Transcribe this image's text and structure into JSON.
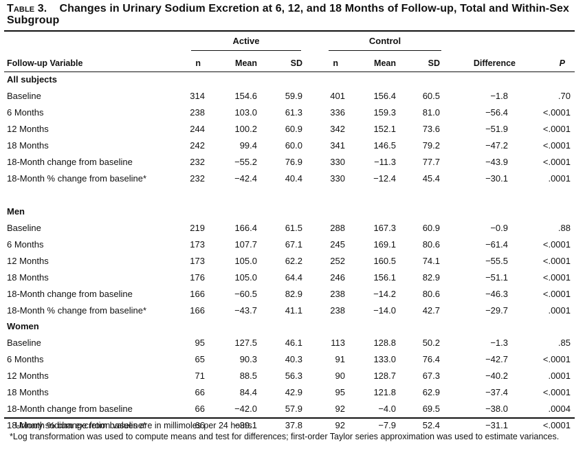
{
  "table": {
    "title_prefix": "Table 3.",
    "title_text": "Changes in Urinary Sodium Excretion at 6, 12, and 18 Months of Follow-up, Total and Within-Sex Subgroup",
    "group_headers": {
      "active": "Active",
      "control": "Control"
    },
    "columns": {
      "variable": "Follow-up Variable",
      "active_n": "n",
      "active_mean": "Mean",
      "active_sd": "SD",
      "control_n": "n",
      "control_mean": "Mean",
      "control_sd": "SD",
      "difference": "Difference",
      "p": "P"
    },
    "sections": [
      {
        "title": "All subjects",
        "rows": [
          {
            "label": "Baseline",
            "a_n": "314",
            "a_mean": "154.6",
            "a_sd": "59.9",
            "c_n": "401",
            "c_mean": "156.4",
            "c_sd": "60.5",
            "diff": "−1.8",
            "p": ".70"
          },
          {
            "label": "6 Months",
            "a_n": "238",
            "a_mean": "103.0",
            "a_sd": "61.3",
            "c_n": "336",
            "c_mean": "159.3",
            "c_sd": "81.0",
            "diff": "−56.4",
            "p": "<.0001"
          },
          {
            "label": "12 Months",
            "a_n": "244",
            "a_mean": "100.2",
            "a_sd": "60.9",
            "c_n": "342",
            "c_mean": "152.1",
            "c_sd": "73.6",
            "diff": "−51.9",
            "p": "<.0001"
          },
          {
            "label": "18 Months",
            "a_n": "242",
            "a_mean": "99.4",
            "a_sd": "60.0",
            "c_n": "341",
            "c_mean": "146.5",
            "c_sd": "79.2",
            "diff": "−47.2",
            "p": "<.0001"
          },
          {
            "label": "18-Month change from baseline",
            "a_n": "232",
            "a_mean": "−55.2",
            "a_sd": "76.9",
            "c_n": "330",
            "c_mean": "−11.3",
            "c_sd": "77.7",
            "diff": "−43.9",
            "p": "<.0001"
          },
          {
            "label": "18-Month % change from baseline*",
            "a_n": "232",
            "a_mean": "−42.4",
            "a_sd": "40.4",
            "c_n": "330",
            "c_mean": "−12.4",
            "c_sd": "45.4",
            "diff": "−30.1",
            "p": ".0001"
          }
        ]
      },
      {
        "title": "Men",
        "rows": [
          {
            "label": "Baseline",
            "a_n": "219",
            "a_mean": "166.4",
            "a_sd": "61.5",
            "c_n": "288",
            "c_mean": "167.3",
            "c_sd": "60.9",
            "diff": "−0.9",
            "p": ".88"
          },
          {
            "label": "6 Months",
            "a_n": "173",
            "a_mean": "107.7",
            "a_sd": "67.1",
            "c_n": "245",
            "c_mean": "169.1",
            "c_sd": "80.6",
            "diff": "−61.4",
            "p": "<.0001"
          },
          {
            "label": "12 Months",
            "a_n": "173",
            "a_mean": "105.0",
            "a_sd": "62.2",
            "c_n": "252",
            "c_mean": "160.5",
            "c_sd": "74.1",
            "diff": "−55.5",
            "p": "<.0001"
          },
          {
            "label": "18 Months",
            "a_n": "176",
            "a_mean": "105.0",
            "a_sd": "64.4",
            "c_n": "246",
            "c_mean": "156.1",
            "c_sd": "82.9",
            "diff": "−51.1",
            "p": "<.0001"
          },
          {
            "label": "18-Month change from baseline",
            "a_n": "166",
            "a_mean": "−60.5",
            "a_sd": "82.9",
            "c_n": "238",
            "c_mean": "−14.2",
            "c_sd": "80.6",
            "diff": "−46.3",
            "p": "<.0001"
          },
          {
            "label": "18-Month % change from baseline*",
            "a_n": "166",
            "a_mean": "−43.7",
            "a_sd": "41.1",
            "c_n": "238",
            "c_mean": "−14.0",
            "c_sd": "42.7",
            "diff": "−29.7",
            "p": ".0001"
          }
        ]
      },
      {
        "title": "Women",
        "rows": [
          {
            "label": "Baseline",
            "a_n": "95",
            "a_mean": "127.5",
            "a_sd": "46.1",
            "c_n": "113",
            "c_mean": "128.8",
            "c_sd": "50.2",
            "diff": "−1.3",
            "p": ".85"
          },
          {
            "label": "6 Months",
            "a_n": "65",
            "a_mean": "90.3",
            "a_sd": "40.3",
            "c_n": "91",
            "c_mean": "133.0",
            "c_sd": "76.4",
            "diff": "−42.7",
            "p": "<.0001"
          },
          {
            "label": "12 Months",
            "a_n": "71",
            "a_mean": "88.5",
            "a_sd": "56.3",
            "c_n": "90",
            "c_mean": "128.7",
            "c_sd": "67.3",
            "diff": "−40.2",
            "p": ".0001"
          },
          {
            "label": "18 Months",
            "a_n": "66",
            "a_mean": "84.4",
            "a_sd": "42.9",
            "c_n": "95",
            "c_mean": "121.8",
            "c_sd": "62.9",
            "diff": "−37.4",
            "p": "<.0001"
          },
          {
            "label": "18-Month change from baseline",
            "a_n": "66",
            "a_mean": "−42.0",
            "a_sd": "57.9",
            "c_n": "92",
            "c_mean": "−4.0",
            "c_sd": "69.5",
            "diff": "−38.0",
            "p": ".0004"
          },
          {
            "label": "18-Month % change from baseline*",
            "a_n": "66",
            "a_mean": "−39.1",
            "a_sd": "37.8",
            "c_n": "92",
            "c_mean": "−7.9",
            "c_sd": "52.4",
            "diff": "−31.1",
            "p": "<.0001"
          }
        ]
      }
    ],
    "footnotes": [
      "Urinary sodium excretion values are in millimoles per 24 hours.",
      "*Log transformation was used to compute means and test for differences; first-order Taylor series approximation was used to estimate variances."
    ]
  }
}
